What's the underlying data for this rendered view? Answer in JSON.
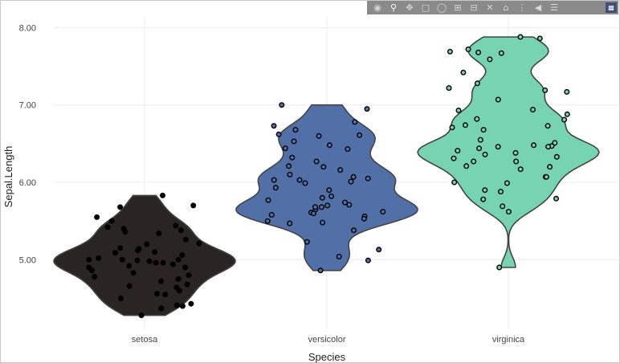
{
  "modebar": {
    "icons": [
      "camera-icon",
      "zoom-icon",
      "pan-icon",
      "box-select-icon",
      "lasso-icon",
      "zoom-in-icon",
      "zoom-out-icon",
      "autoscale-icon",
      "reset-axes-icon",
      "spike-lines-icon",
      "hover-closest-icon",
      "hover-compare-icon",
      "plotly-logo-icon"
    ]
  },
  "chart_data": {
    "type": "violin",
    "xlabel": "Species",
    "ylabel": "Sepal.Length",
    "yticks": [
      "5.00",
      "6.00",
      "7.00",
      "8.00"
    ],
    "ylim": [
      4.1,
      8.15
    ],
    "grid": true,
    "categories": [
      "setosa",
      "versicolor",
      "virginica"
    ],
    "colors": {
      "setosa": "#2a2424",
      "versicolor": "#5270a8",
      "virginica": "#77d4b2"
    },
    "points": {
      "setosa": [
        5.83,
        5.7,
        5.68,
        5.55,
        5.5,
        5.44,
        5.42,
        5.4,
        5.38,
        5.36,
        5.34,
        5.26,
        5.21,
        5.2,
        5.15,
        5.14,
        5.12,
        5.1,
        5.09,
        5.06,
        5.02,
        5.0,
        5.0,
        5.0,
        4.99,
        4.98,
        4.96,
        4.96,
        4.94,
        4.92,
        4.9,
        4.9,
        4.86,
        4.83,
        4.8,
        4.78,
        4.75,
        4.72,
        4.68,
        4.66,
        4.64,
        4.6,
        4.56,
        4.55,
        4.5,
        4.43,
        4.41,
        4.4,
        4.37,
        4.28
      ],
      "versicolor": [
        7.0,
        6.95,
        6.78,
        6.73,
        6.68,
        6.62,
        6.61,
        6.53,
        6.48,
        6.43,
        6.32,
        6.27,
        6.21,
        6.16,
        6.1,
        6.07,
        6.05,
        6.03,
        6.01,
        5.99,
        5.93,
        5.82,
        5.8,
        5.77,
        5.74,
        5.71,
        5.7,
        5.68,
        5.65,
        5.62,
        5.61,
        5.58,
        5.56,
        5.53,
        5.5,
        5.48,
        5.47,
        5.38,
        5.23,
        5.13,
        5.04,
        4.99,
        4.86,
        6.03,
        5.68,
        6.44,
        5.9,
        6.6,
        6.2,
        5.6
      ],
      "virginica": [
        7.88,
        7.86,
        7.72,
        7.69,
        7.68,
        7.67,
        7.59,
        7.42,
        7.28,
        7.22,
        7.19,
        7.17,
        7.07,
        6.94,
        6.93,
        6.88,
        6.82,
        6.81,
        6.74,
        6.73,
        6.71,
        6.68,
        6.51,
        6.48,
        6.47,
        6.46,
        6.46,
        6.44,
        6.41,
        6.38,
        6.33,
        6.31,
        6.27,
        6.27,
        6.21,
        6.2,
        6.17,
        6.07,
        6.07,
        5.99,
        5.88,
        5.79,
        5.78,
        5.69,
        5.62,
        4.9,
        6.55,
        6.0,
        5.9,
        6.36
      ]
    }
  }
}
